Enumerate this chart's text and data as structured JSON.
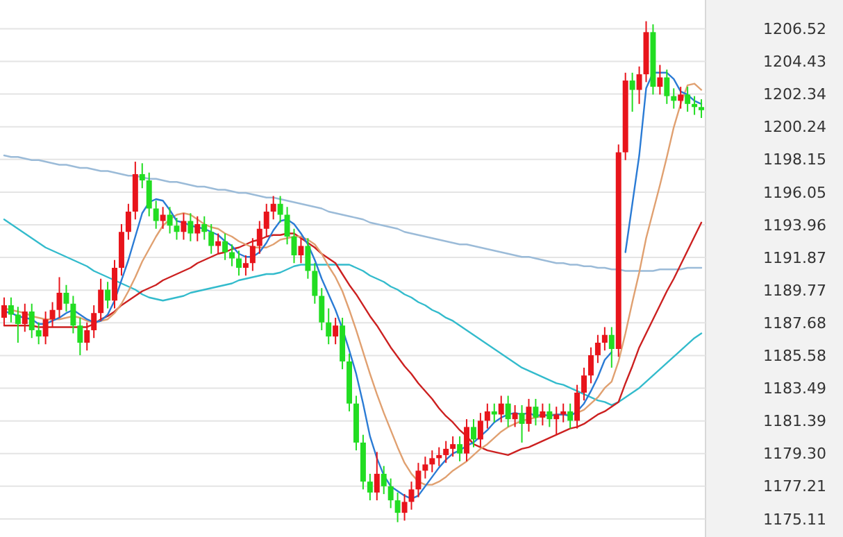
{
  "chart_data": {
    "type": "candlestick",
    "grid": "y",
    "ylim": [
      1173.95,
      1208.36
    ],
    "yticks": [
      1206.52,
      1204.43,
      1202.34,
      1200.24,
      1198.15,
      1196.05,
      1193.96,
      1191.87,
      1189.77,
      1187.68,
      1185.58,
      1183.49,
      1181.39,
      {
        "value": 1179.3,
        "label": "1179.30"
      },
      1177.21,
      1175.11
    ],
    "categories": [
      null,
      null,
      null,
      null,
      null,
      null,
      null,
      null,
      null,
      null,
      null,
      null,
      null,
      null,
      null,
      null,
      null,
      null,
      null,
      null,
      null,
      null,
      null,
      null,
      null,
      null,
      null,
      null,
      null,
      null,
      null,
      null,
      null,
      null,
      null,
      null,
      null,
      null,
      null,
      null,
      null,
      null,
      null,
      null,
      null,
      null,
      null,
      null,
      null,
      null,
      null,
      null,
      null,
      null,
      null,
      null,
      null,
      null,
      null,
      null,
      null,
      null,
      null,
      null,
      null,
      null,
      null,
      null,
      null,
      null,
      null,
      null,
      null,
      null,
      null,
      null,
      null,
      null,
      null,
      null,
      null,
      null,
      null,
      null,
      null,
      null,
      null,
      null,
      null,
      null,
      null,
      null,
      null,
      null,
      null,
      null,
      null,
      null,
      null,
      null,
      null,
      null
    ],
    "ohlc": [
      [
        1188.0,
        1189.3,
        1187.5,
        1188.8
      ],
      [
        1188.8,
        1189.3,
        1187.7,
        1188.2
      ],
      [
        1188.2,
        1188.7,
        1186.4,
        1187.6
      ],
      [
        1187.6,
        1188.9,
        1187.1,
        1188.4
      ],
      [
        1188.4,
        1188.9,
        1186.7,
        1187.2
      ],
      [
        1187.2,
        1187.7,
        1186.3,
        1186.8
      ],
      [
        1186.8,
        1188.4,
        1186.3,
        1187.9
      ],
      [
        1187.9,
        1189.0,
        1187.4,
        1188.5
      ],
      [
        1188.5,
        1190.6,
        1188.0,
        1189.6
      ],
      [
        1189.6,
        1190.1,
        1188.4,
        1188.9
      ],
      [
        1188.9,
        1189.4,
        1187.0,
        1187.5
      ],
      [
        1187.5,
        1188.0,
        1185.6,
        1186.4
      ],
      [
        1186.4,
        1187.7,
        1185.9,
        1187.2
      ],
      [
        1187.2,
        1188.8,
        1186.7,
        1188.3
      ],
      [
        1188.3,
        1190.5,
        1187.8,
        1189.8
      ],
      [
        1189.8,
        1190.3,
        1188.6,
        1189.1
      ],
      [
        1189.1,
        1191.7,
        1188.6,
        1191.2
      ],
      [
        1191.2,
        1194.0,
        1190.7,
        1193.5
      ],
      [
        1193.5,
        1195.3,
        1193.0,
        1194.8
      ],
      [
        1194.8,
        1198.0,
        1194.3,
        1197.2
      ],
      [
        1197.2,
        1197.9,
        1196.3,
        1196.8
      ],
      [
        1196.8,
        1197.3,
        1194.5,
        1195.0
      ],
      [
        1195.0,
        1195.5,
        1193.7,
        1194.2
      ],
      [
        1194.2,
        1195.1,
        1193.7,
        1194.6
      ],
      [
        1194.6,
        1195.1,
        1193.4,
        1193.9
      ],
      [
        1193.9,
        1194.4,
        1193.0,
        1193.5
      ],
      [
        1193.5,
        1194.7,
        1193.0,
        1194.2
      ],
      [
        1194.2,
        1194.7,
        1192.9,
        1193.4
      ],
      [
        1193.4,
        1194.5,
        1192.9,
        1194.0
      ],
      [
        1194.0,
        1194.5,
        1193.0,
        1193.5
      ],
      [
        1193.5,
        1194.0,
        1192.1,
        1192.6
      ],
      [
        1192.6,
        1193.4,
        1192.1,
        1192.9
      ],
      [
        1192.9,
        1193.4,
        1191.7,
        1192.2
      ],
      [
        1192.2,
        1192.7,
        1191.3,
        1191.8
      ],
      [
        1191.8,
        1192.3,
        1190.7,
        1191.2
      ],
      [
        1191.2,
        1192.0,
        1190.7,
        1191.5
      ],
      [
        1191.5,
        1193.1,
        1191.0,
        1192.6
      ],
      [
        1192.6,
        1194.2,
        1192.1,
        1193.7
      ],
      [
        1193.7,
        1195.3,
        1193.2,
        1194.8
      ],
      [
        1194.8,
        1195.8,
        1194.3,
        1195.3
      ],
      [
        1195.3,
        1195.8,
        1194.1,
        1194.6
      ],
      [
        1194.6,
        1195.1,
        1192.7,
        1193.2
      ],
      [
        1193.2,
        1193.7,
        1191.5,
        1192.0
      ],
      [
        1192.0,
        1193.1,
        1191.5,
        1192.6
      ],
      [
        1192.6,
        1193.1,
        1190.5,
        1191.0
      ],
      [
        1191.0,
        1191.5,
        1188.9,
        1189.4
      ],
      [
        1189.4,
        1189.9,
        1187.2,
        1187.7
      ],
      [
        1187.7,
        1188.6,
        1186.3,
        1186.8
      ],
      [
        1186.8,
        1188.0,
        1186.3,
        1187.5
      ],
      [
        1187.5,
        1188.0,
        1184.7,
        1185.2
      ],
      [
        1185.2,
        1185.7,
        1182.0,
        1182.5
      ],
      [
        1182.5,
        1183.0,
        1179.5,
        1180.0
      ],
      [
        1180.0,
        1180.5,
        1177.0,
        1177.5
      ],
      [
        1177.5,
        1178.0,
        1176.3,
        1176.8
      ],
      [
        1176.8,
        1179.4,
        1176.3,
        1178.0
      ],
      [
        1178.0,
        1178.5,
        1176.7,
        1177.2
      ],
      [
        1177.2,
        1177.7,
        1175.8,
        1176.3
      ],
      [
        1176.3,
        1176.8,
        1174.9,
        1175.5
      ],
      [
        1175.5,
        1176.7,
        1175.0,
        1176.2
      ],
      [
        1176.2,
        1177.5,
        1175.7,
        1177.0
      ],
      [
        1177.0,
        1178.7,
        1176.5,
        1178.2
      ],
      [
        1178.2,
        1179.1,
        1177.7,
        1178.6
      ],
      [
        1178.6,
        1179.5,
        1178.1,
        1179.0
      ],
      [
        1179.0,
        1179.7,
        1178.5,
        1179.2
      ],
      [
        1179.2,
        1180.1,
        1178.7,
        1179.6
      ],
      [
        1179.6,
        1180.4,
        1179.1,
        1179.9
      ],
      [
        1179.9,
        1180.4,
        1178.8,
        1179.3
      ],
      [
        1179.3,
        1181.5,
        1178.8,
        1181.0
      ],
      [
        1181.0,
        1181.5,
        1179.7,
        1180.2
      ],
      [
        1180.2,
        1181.9,
        1179.7,
        1181.4
      ],
      [
        1181.4,
        1182.5,
        1180.9,
        1182.0
      ],
      [
        1182.0,
        1182.5,
        1181.3,
        1181.8
      ],
      [
        1181.8,
        1183.0,
        1181.3,
        1182.5
      ],
      [
        1182.5,
        1183.0,
        1181.0,
        1181.5
      ],
      [
        1181.5,
        1182.4,
        1181.0,
        1181.9
      ],
      [
        1181.9,
        1182.4,
        1180.0,
        1181.2
      ],
      [
        1181.2,
        1182.8,
        1180.7,
        1182.3
      ],
      [
        1182.3,
        1182.8,
        1181.1,
        1181.6
      ],
      [
        1181.6,
        1182.5,
        1181.1,
        1182.0
      ],
      [
        1182.0,
        1182.5,
        1181.0,
        1181.5
      ],
      [
        1181.5,
        1182.3,
        1180.5,
        1181.8
      ],
      [
        1181.8,
        1182.5,
        1181.3,
        1182.0
      ],
      [
        1182.0,
        1182.5,
        1180.9,
        1181.4
      ],
      [
        1181.4,
        1183.7,
        1180.9,
        1183.2
      ],
      [
        1183.2,
        1184.8,
        1182.7,
        1184.3
      ],
      [
        1184.3,
        1186.1,
        1183.8,
        1185.6
      ],
      [
        1185.6,
        1186.9,
        1185.1,
        1186.4
      ],
      [
        1186.4,
        1187.4,
        1185.9,
        1186.9
      ],
      [
        1186.9,
        1187.4,
        1184.8,
        1186.0
      ],
      [
        1186.0,
        1199.1,
        1185.5,
        1198.6
      ],
      [
        1198.6,
        1203.7,
        1198.1,
        1203.2
      ],
      [
        1203.2,
        1203.7,
        1201.2,
        1202.6
      ],
      [
        1202.6,
        1204.1,
        1201.7,
        1203.6
      ],
      [
        1203.6,
        1207.0,
        1203.1,
        1206.3
      ],
      [
        1206.3,
        1206.8,
        1202.3,
        1202.8
      ],
      [
        1202.8,
        1204.2,
        1202.3,
        1203.4
      ],
      [
        1203.4,
        1203.9,
        1201.7,
        1202.2
      ],
      [
        1202.2,
        1202.7,
        1201.4,
        1201.9
      ],
      [
        1201.9,
        1202.8,
        1201.4,
        1202.3
      ],
      [
        1202.3,
        1202.8,
        1201.2,
        1201.7
      ],
      [
        1201.7,
        1202.2,
        1201.0,
        1201.5
      ],
      [
        1201.5,
        1202.0,
        1200.8,
        1201.3
      ]
    ],
    "colors": [
      "#e8141b",
      "#22dd22",
      "#22dd22",
      "#e8141b",
      "#22dd22",
      "#22dd22",
      "#e8141b",
      "#e8141b",
      "#e8141b",
      "#22dd22",
      "#22dd22",
      "#22dd22",
      "#e8141b",
      "#e8141b",
      "#e8141b",
      "#22dd22",
      "#e8141b",
      "#e8141b",
      "#e8141b",
      "#e8141b",
      "#22dd22",
      "#22dd22",
      "#22dd22",
      "#e8141b",
      "#22dd22",
      "#22dd22",
      "#e8141b",
      "#22dd22",
      "#e8141b",
      "#22dd22",
      "#22dd22",
      "#e8141b",
      "#22dd22",
      "#22dd22",
      "#22dd22",
      "#e8141b",
      "#e8141b",
      "#e8141b",
      "#e8141b",
      "#e8141b",
      "#22dd22",
      "#22dd22",
      "#22dd22",
      "#e8141b",
      "#22dd22",
      "#22dd22",
      "#22dd22",
      "#22dd22",
      "#e8141b",
      "#22dd22",
      "#22dd22",
      "#22dd22",
      "#22dd22",
      "#22dd22",
      "#e8141b",
      "#22dd22",
      "#22dd22",
      "#22dd22",
      "#e8141b",
      "#e8141b",
      "#e8141b",
      "#e8141b",
      "#e8141b",
      "#e8141b",
      "#e8141b",
      "#e8141b",
      "#22dd22",
      "#e8141b",
      "#22dd22",
      "#e8141b",
      "#e8141b",
      "#22dd22",
      "#e8141b",
      "#22dd22",
      "#e8141b",
      "#22dd22",
      "#e8141b",
      "#22dd22",
      "#e8141b",
      "#22dd22",
      "#e8141b",
      "#e8141b",
      "#22dd22",
      "#e8141b",
      "#e8141b",
      "#e8141b",
      "#e8141b",
      "#e8141b",
      "#22dd22",
      "#e8141b",
      "#e8141b",
      "#22dd22",
      "#e8141b",
      "#e8141b",
      "#22dd22",
      "#e8141b",
      "#22dd22",
      "#22dd22",
      "#e8141b",
      "#22dd22",
      "#22dd22",
      "#22dd22"
    ],
    "series": [
      {
        "type": "line",
        "color": "#9bbbd8",
        "values": [
          1198.4,
          1198.3,
          1198.3,
          1198.2,
          1198.1,
          1198.1,
          1198.0,
          1197.9,
          1197.8,
          1197.8,
          1197.7,
          1197.6,
          1197.6,
          1197.5,
          1197.4,
          1197.4,
          1197.3,
          1197.2,
          1197.1,
          1197.1,
          1197.0,
          1196.9,
          1196.9,
          1196.8,
          1196.7,
          1196.7,
          1196.6,
          1196.5,
          1196.4,
          1196.4,
          1196.3,
          1196.2,
          1196.2,
          1196.1,
          1196.0,
          1196.0,
          1195.9,
          1195.8,
          1195.7,
          1195.7,
          1195.6,
          1195.5,
          1195.4,
          1195.3,
          1195.2,
          1195.1,
          1195.0,
          1194.8,
          1194.7,
          1194.6,
          1194.5,
          1194.4,
          1194.3,
          1194.1,
          1194.0,
          1193.9,
          1193.8,
          1193.7,
          1193.5,
          1193.4,
          1193.3,
          1193.2,
          1193.1,
          1193.0,
          1192.9,
          1192.8,
          1192.7,
          1192.7,
          1192.6,
          1192.5,
          1192.4,
          1192.3,
          1192.2,
          1192.1,
          1192.0,
          1191.9,
          1191.9,
          1191.8,
          1191.7,
          1191.6,
          1191.5,
          1191.5,
          1191.4,
          1191.4,
          1191.3,
          1191.3,
          1191.2,
          1191.2,
          1191.1,
          1191.1,
          1191.0,
          1191.0,
          1191.0,
          1191.0,
          1191.0,
          1191.1,
          1191.1,
          1191.1,
          1191.1,
          1191.2,
          1191.2,
          1191.2
        ]
      },
      {
        "type": "line",
        "color": "#33bbcc",
        "values": [
          1194.3,
          1194.0,
          1193.7,
          1193.4,
          1193.1,
          1192.8,
          1192.5,
          1192.3,
          1192.1,
          1191.9,
          1191.7,
          1191.5,
          1191.3,
          1191.0,
          1190.8,
          1190.6,
          1190.4,
          1190.2,
          1190.0,
          1189.8,
          1189.5,
          1189.3,
          1189.2,
          1189.1,
          1189.2,
          1189.3,
          1189.4,
          1189.6,
          1189.7,
          1189.8,
          1189.9,
          1190.0,
          1190.1,
          1190.2,
          1190.4,
          1190.5,
          1190.6,
          1190.7,
          1190.8,
          1190.8,
          1190.9,
          1191.1,
          1191.3,
          1191.4,
          1191.4,
          1191.4,
          1191.4,
          1191.4,
          1191.4,
          1191.4,
          1191.4,
          1191.2,
          1191.0,
          1190.7,
          1190.5,
          1190.3,
          1190.0,
          1189.8,
          1189.5,
          1189.3,
          1189.0,
          1188.8,
          1188.5,
          1188.3,
          1188.0,
          1187.8,
          1187.5,
          1187.2,
          1186.9,
          1186.6,
          1186.3,
          1186.0,
          1185.7,
          1185.4,
          1185.1,
          1184.8,
          1184.6,
          1184.4,
          1184.2,
          1184.0,
          1183.8,
          1183.7,
          1183.5,
          1183.3,
          1183.1,
          1182.9,
          1182.7,
          1182.6,
          1182.4,
          1182.6,
          1182.9,
          1183.2,
          1183.5,
          1183.9,
          1184.3,
          1184.7,
          1185.1,
          1185.5,
          1185.9,
          1186.3,
          1186.7,
          1187.0
        ]
      },
      {
        "type": "line",
        "color": "#cc2020",
        "values": [
          1187.5,
          1187.5,
          1187.5,
          1187.5,
          1187.5,
          1187.4,
          1187.4,
          1187.4,
          1187.4,
          1187.4,
          1187.4,
          1187.4,
          1187.4,
          1187.6,
          1187.9,
          1188.1,
          1188.4,
          1188.8,
          1189.1,
          1189.4,
          1189.7,
          1189.9,
          1190.1,
          1190.4,
          1190.6,
          1190.8,
          1191.0,
          1191.2,
          1191.5,
          1191.7,
          1191.9,
          1192.1,
          1192.2,
          1192.4,
          1192.5,
          1192.7,
          1192.9,
          1193.0,
          1193.2,
          1193.3,
          1193.3,
          1193.4,
          1193.4,
          1193.1,
          1192.8,
          1192.5,
          1192.1,
          1191.8,
          1191.5,
          1190.8,
          1190.1,
          1189.5,
          1188.8,
          1188.1,
          1187.5,
          1186.8,
          1186.1,
          1185.5,
          1184.9,
          1184.4,
          1183.8,
          1183.3,
          1182.8,
          1182.2,
          1181.7,
          1181.3,
          1180.8,
          1180.4,
          1179.9,
          1179.7,
          1179.5,
          1179.4,
          1179.3,
          1179.2,
          1179.4,
          1179.6,
          1179.7,
          1179.9,
          1180.1,
          1180.3,
          1180.5,
          1180.7,
          1180.9,
          1181.0,
          1181.2,
          1181.5,
          1181.8,
          1182.0,
          1182.3,
          1182.6,
          1183.8,
          1184.9,
          1186.1,
          1187.0,
          1187.9,
          1188.8,
          1189.7,
          1190.5,
          1191.4,
          1192.3,
          1193.2,
          1194.1
        ]
      },
      {
        "type": "line",
        "color": "#e0a070",
        "values": [
          1188.6,
          1188.5,
          1188.4,
          1188.3,
          1188.1,
          1188.0,
          1187.9,
          1187.9,
          1187.9,
          1188.0,
          1188.1,
          1188.0,
          1187.8,
          1187.7,
          1187.8,
          1187.9,
          1188.3,
          1188.9,
          1189.7,
          1190.6,
          1191.6,
          1192.4,
          1193.2,
          1193.9,
          1194.3,
          1194.6,
          1194.7,
          1194.6,
          1194.3,
          1194.0,
          1193.8,
          1193.7,
          1193.4,
          1193.2,
          1192.9,
          1192.7,
          1192.5,
          1192.5,
          1192.5,
          1192.7,
          1193.0,
          1193.1,
          1193.2,
          1193.2,
          1193.0,
          1192.7,
          1192.1,
          1191.3,
          1190.6,
          1189.7,
          1188.5,
          1187.2,
          1185.8,
          1184.4,
          1183.1,
          1181.9,
          1180.8,
          1179.7,
          1178.7,
          1178.0,
          1177.5,
          1177.3,
          1177.3,
          1177.5,
          1177.8,
          1178.2,
          1178.5,
          1178.8,
          1179.2,
          1179.6,
          1179.9,
          1180.3,
          1180.7,
          1181.0,
          1181.2,
          1181.4,
          1181.5,
          1181.6,
          1181.7,
          1181.8,
          1181.8,
          1181.8,
          1181.8,
          1181.9,
          1182.1,
          1182.5,
          1182.9,
          1183.5,
          1183.9,
          1185.2,
          1187.0,
          1189.0,
          1190.9,
          1193.1,
          1194.8,
          1196.5,
          1198.3,
          1200.2,
          1201.7,
          1202.9,
          1203.0,
          1202.6
        ]
      },
      {
        "type": "line",
        "color": "#2a7bd5",
        "values": [
          1188.4,
          1188.3,
          1188.1,
          1188.0,
          1187.9,
          1187.6,
          1187.6,
          1187.8,
          1188.0,
          1188.3,
          1188.5,
          1188.2,
          1187.9,
          1187.7,
          1187.8,
          1188.2,
          1189.1,
          1190.4,
          1191.7,
          1193.2,
          1194.7,
          1195.4,
          1195.6,
          1195.5,
          1194.9,
          1194.2,
          1194.1,
          1193.9,
          1193.8,
          1193.7,
          1193.5,
          1193.3,
          1192.9,
          1192.6,
          1192.1,
          1191.9,
          1191.9,
          1192.2,
          1192.8,
          1193.6,
          1194.2,
          1194.3,
          1194.0,
          1193.4,
          1192.7,
          1191.7,
          1190.5,
          1189.5,
          1188.5,
          1187.3,
          1185.9,
          1184.4,
          1182.5,
          1180.4,
          1179.0,
          1177.9,
          1177.2,
          1176.9,
          1176.6,
          1176.4,
          1176.6,
          1177.2,
          1177.8,
          1178.4,
          1178.9,
          1179.3,
          1179.5,
          1179.8,
          1180.0,
          1180.4,
          1180.8,
          1181.3,
          1181.6,
          1181.8,
          1181.9,
          1181.8,
          1181.9,
          1181.7,
          1181.8,
          1181.7,
          1181.8,
          1181.8,
          1181.7,
          1182.0,
          1182.5,
          1183.3,
          1184.2,
          1185.3,
          1185.8,
          null,
          1192.2,
          1195.3,
          1198.4,
          1202.7,
          1203.7,
          1203.7,
          1203.7,
          1203.3,
          1202.5,
          1202.3,
          1201.9,
          1201.7
        ]
      }
    ]
  }
}
